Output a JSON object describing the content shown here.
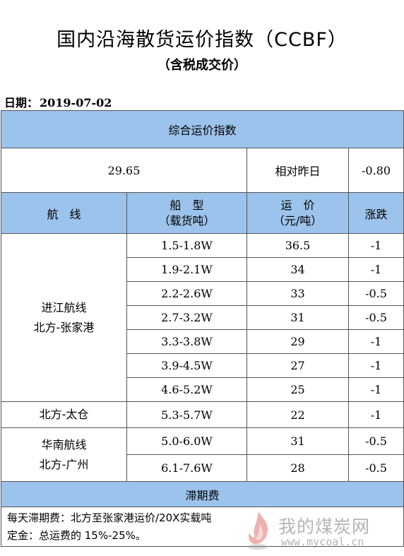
{
  "title": "国内沿海散货运价指数（CCBF）",
  "subtitle": "（含税成交价）",
  "date": {
    "label": "日期：",
    "value": "2019-07-02"
  },
  "composite": {
    "header": "综合运价指数",
    "value": "29.65",
    "change_label": "相对昨日",
    "change_value": "-0.80"
  },
  "columns": {
    "route": "航　线",
    "ship_type": "船　型",
    "ship_type_unit": "（载货吨）",
    "rate": "运　价",
    "rate_unit": "（元/吨）",
    "change": "涨跌"
  },
  "groups": [
    {
      "route_line1": "进江航线",
      "route_line2": "北方-张家港",
      "rows": [
        {
          "ship": "1.5-1.8W",
          "rate": "36.5",
          "change": "-1"
        },
        {
          "ship": "1.9-2.1W",
          "rate": "34",
          "change": "-1"
        },
        {
          "ship": "2.2-2.6W",
          "rate": "33",
          "change": "-0.5"
        },
        {
          "ship": "2.7-3.2W",
          "rate": "31",
          "change": "-0.5"
        },
        {
          "ship": "3.3-3.8W",
          "rate": "29",
          "change": "-1"
        },
        {
          "ship": "3.9-4.5W",
          "rate": "27",
          "change": "-1"
        },
        {
          "ship": "4.6-5.2W",
          "rate": "25",
          "change": "-1"
        }
      ]
    },
    {
      "route_line1": "北方-太仓",
      "rows": [
        {
          "ship": "5.3-5.7W",
          "rate": "22",
          "change": "-1"
        }
      ]
    },
    {
      "route_line1": "华南航线",
      "route_line2": "北方-广州",
      "rows": [
        {
          "ship": "5.0-6.0W",
          "rate": "31",
          "change": "-0.5"
        },
        {
          "ship": "6.1-7.6W",
          "rate": "28",
          "change": "-0.5"
        }
      ]
    }
  ],
  "demurrage": {
    "header": "滞期费",
    "line1": "每天滞期费：北方至张家港运价/20X实载吨",
    "line2": "定金：总运费的 15%-25%。"
  },
  "watermark": {
    "name": "我的煤炭网",
    "url": "www.mycoal.cn",
    "flame_color": "#d9534f"
  },
  "colors": {
    "header_fill": "#9cc3ec",
    "border": "#555555"
  }
}
